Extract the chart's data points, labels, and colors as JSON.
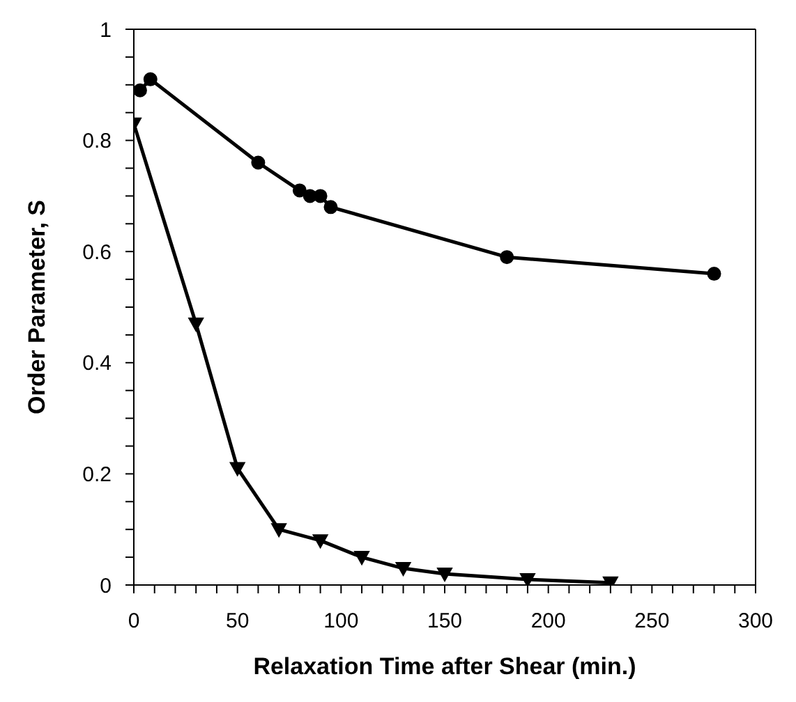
{
  "chart_data": {
    "type": "line",
    "xlabel": "Relaxation Time after Shear (min.)",
    "ylabel": "Order Parameter, S",
    "series": [
      {
        "color": "#000000",
        "marker": "circle",
        "x": [
          3,
          8,
          60,
          80,
          85,
          90,
          95,
          180,
          280
        ],
        "values": [
          0.89,
          0.91,
          0.76,
          0.71,
          0.7,
          0.7,
          0.68,
          0.59,
          0.56
        ]
      },
      {
        "color": "#000000",
        "marker": "triangle",
        "x": [
          0,
          30,
          50,
          70,
          90,
          110,
          130,
          150,
          190,
          230
        ],
        "values": [
          0.83,
          0.47,
          0.21,
          0.1,
          0.08,
          0.05,
          0.03,
          0.02,
          0.01,
          0.004
        ]
      }
    ],
    "xlim": [
      0,
      300
    ],
    "xticks": [
      0,
      {
        "value": 10,
        "label": null
      },
      {
        "value": 20,
        "label": null
      },
      {
        "value": 30,
        "label": null
      },
      {
        "value": 40,
        "label": null
      },
      50,
      {
        "value": 60,
        "label": null
      },
      {
        "value": 70,
        "label": null
      },
      {
        "value": 80,
        "label": null
      },
      {
        "value": 90,
        "label": null
      },
      100,
      {
        "value": 110,
        "label": null
      },
      {
        "value": 120,
        "label": null
      },
      {
        "value": 130,
        "label": null
      },
      {
        "value": 140,
        "label": null
      },
      150,
      {
        "value": 160,
        "label": null
      },
      {
        "value": 170,
        "label": null
      },
      {
        "value": 180,
        "label": null
      },
      {
        "value": 190,
        "label": null
      },
      200,
      {
        "value": 210,
        "label": null
      },
      {
        "value": 220,
        "label": null
      },
      {
        "value": 230,
        "label": null
      },
      {
        "value": 240,
        "label": null
      },
      250,
      {
        "value": 260,
        "label": null
      },
      {
        "value": 270,
        "label": null
      },
      {
        "value": 280,
        "label": null
      },
      {
        "value": 290,
        "label": null
      },
      300
    ],
    "ylim": [
      0,
      1
    ],
    "yticks": [
      0,
      {
        "value": 0.05,
        "label": null
      },
      {
        "value": 0.1,
        "label": null
      },
      {
        "value": 0.15,
        "label": null
      },
      0.2,
      {
        "value": 0.25,
        "label": null
      },
      {
        "value": 0.3,
        "label": null
      },
      {
        "value": 0.35,
        "label": null
      },
      0.4,
      {
        "value": 0.45,
        "label": null
      },
      {
        "value": 0.5,
        "label": null
      },
      {
        "value": 0.55,
        "label": null
      },
      0.6,
      {
        "value": 0.65,
        "label": null
      },
      {
        "value": 0.7,
        "label": null
      },
      {
        "value": 0.75,
        "label": null
      },
      0.8,
      {
        "value": 0.85,
        "label": null
      },
      {
        "value": 0.9,
        "label": null
      },
      {
        "value": 0.95,
        "label": null
      },
      1
    ],
    "line_style": "solid"
  }
}
